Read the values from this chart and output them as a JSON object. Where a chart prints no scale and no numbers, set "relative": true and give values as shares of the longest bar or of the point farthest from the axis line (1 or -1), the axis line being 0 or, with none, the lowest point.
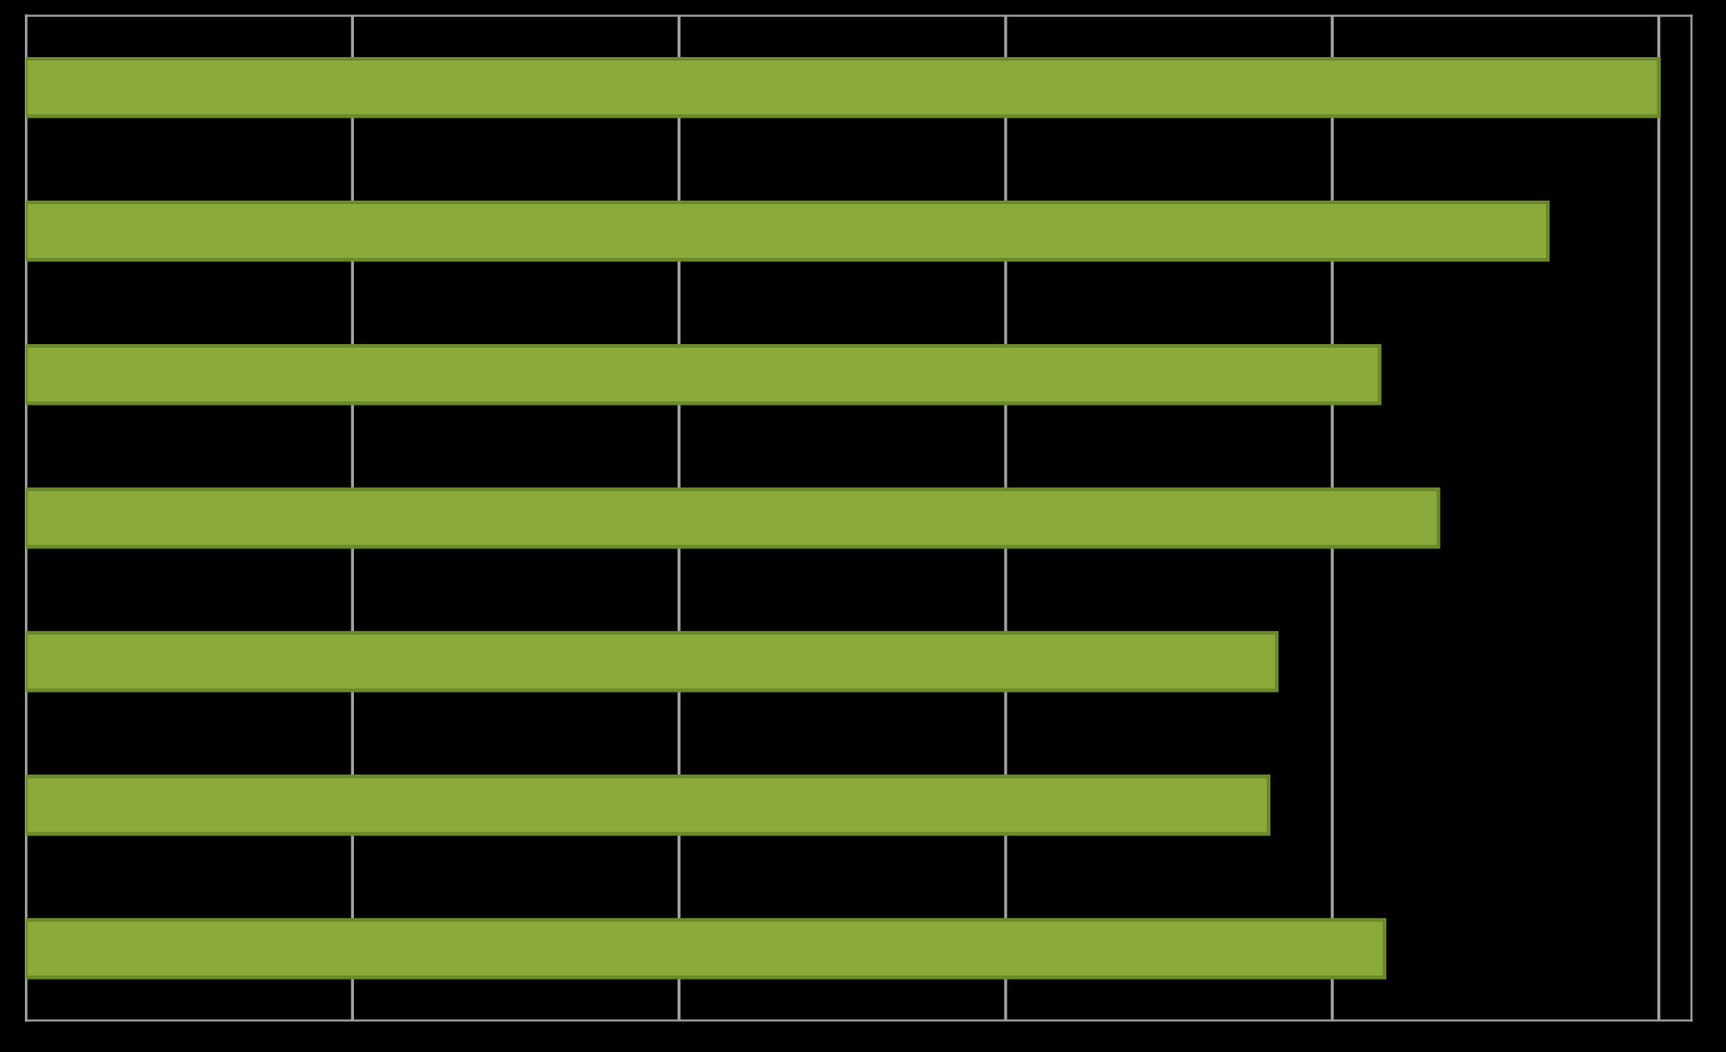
{
  "chart_data": {
    "type": "bar",
    "orientation": "horizontal",
    "relative": true,
    "categories": [
      null,
      null,
      null,
      null,
      null,
      null,
      null
    ],
    "values": [
      1,
      0.932,
      0.829,
      0.865,
      0.766,
      0.761,
      0.832
    ],
    "color": "#8aab3c",
    "grid": "x",
    "legend": false
  }
}
